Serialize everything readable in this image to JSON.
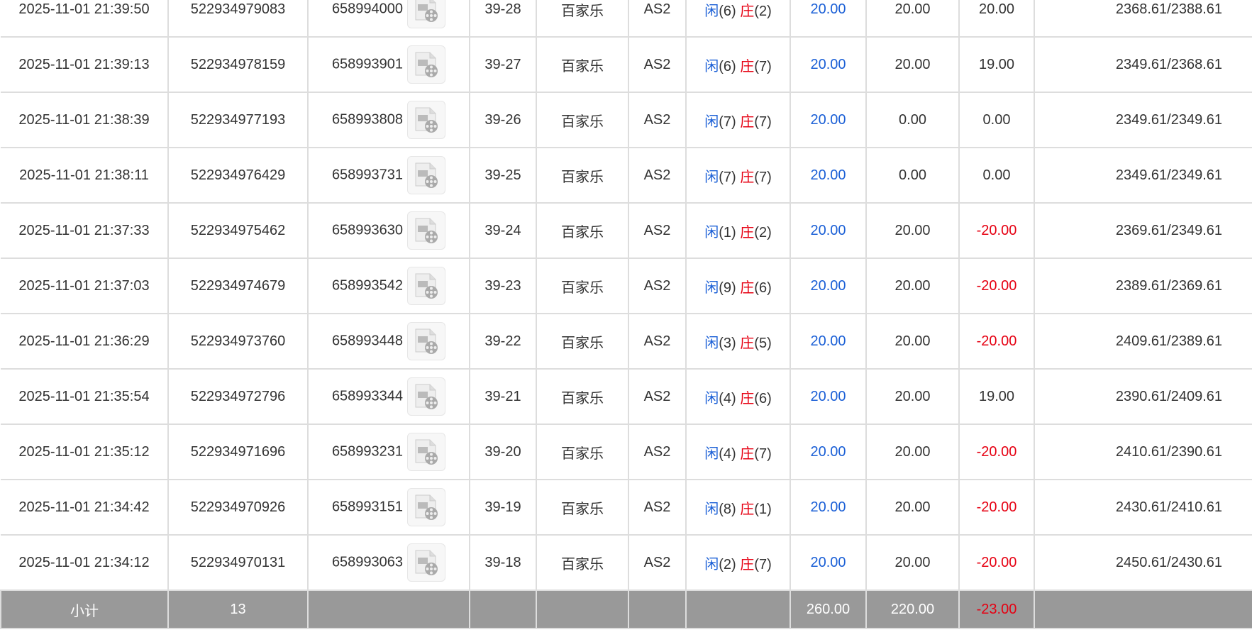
{
  "rows": [
    {
      "time": "2025-11-01 21:39:50",
      "bet_id": "522934979083",
      "round_id": "658994000",
      "shoe": "39-28",
      "game": "百家乐",
      "table": "AS2",
      "player_label": "闲",
      "player": "(6)",
      "banker_label": "庄",
      "banker": "(2)",
      "bet": "20.00",
      "valid": "20.00",
      "win": "20.00",
      "balance": "2368.61/2388.61"
    },
    {
      "time": "2025-11-01 21:39:13",
      "bet_id": "522934978159",
      "round_id": "658993901",
      "shoe": "39-27",
      "game": "百家乐",
      "table": "AS2",
      "player_label": "闲",
      "player": "(6)",
      "banker_label": "庄",
      "banker": "(7)",
      "bet": "20.00",
      "valid": "20.00",
      "win": "19.00",
      "balance": "2349.61/2368.61"
    },
    {
      "time": "2025-11-01 21:38:39",
      "bet_id": "522934977193",
      "round_id": "658993808",
      "shoe": "39-26",
      "game": "百家乐",
      "table": "AS2",
      "player_label": "闲",
      "player": "(7)",
      "banker_label": "庄",
      "banker": "(7)",
      "bet": "20.00",
      "valid": "0.00",
      "win": "0.00",
      "balance": "2349.61/2349.61"
    },
    {
      "time": "2025-11-01 21:38:11",
      "bet_id": "522934976429",
      "round_id": "658993731",
      "shoe": "39-25",
      "game": "百家乐",
      "table": "AS2",
      "player_label": "闲",
      "player": "(7)",
      "banker_label": "庄",
      "banker": "(7)",
      "bet": "20.00",
      "valid": "0.00",
      "win": "0.00",
      "balance": "2349.61/2349.61"
    },
    {
      "time": "2025-11-01 21:37:33",
      "bet_id": "522934975462",
      "round_id": "658993630",
      "shoe": "39-24",
      "game": "百家乐",
      "table": "AS2",
      "player_label": "闲",
      "player": "(1)",
      "banker_label": "庄",
      "banker": "(2)",
      "bet": "20.00",
      "valid": "20.00",
      "win": "-20.00",
      "balance": "2369.61/2349.61"
    },
    {
      "time": "2025-11-01 21:37:03",
      "bet_id": "522934974679",
      "round_id": "658993542",
      "shoe": "39-23",
      "game": "百家乐",
      "table": "AS2",
      "player_label": "闲",
      "player": "(9)",
      "banker_label": "庄",
      "banker": "(6)",
      "bet": "20.00",
      "valid": "20.00",
      "win": "-20.00",
      "balance": "2389.61/2369.61"
    },
    {
      "time": "2025-11-01 21:36:29",
      "bet_id": "522934973760",
      "round_id": "658993448",
      "shoe": "39-22",
      "game": "百家乐",
      "table": "AS2",
      "player_label": "闲",
      "player": "(3)",
      "banker_label": "庄",
      "banker": "(5)",
      "bet": "20.00",
      "valid": "20.00",
      "win": "-20.00",
      "balance": "2409.61/2389.61"
    },
    {
      "time": "2025-11-01 21:35:54",
      "bet_id": "522934972796",
      "round_id": "658993344",
      "shoe": "39-21",
      "game": "百家乐",
      "table": "AS2",
      "player_label": "闲",
      "player": "(4)",
      "banker_label": "庄",
      "banker": "(6)",
      "bet": "20.00",
      "valid": "20.00",
      "win": "19.00",
      "balance": "2390.61/2409.61"
    },
    {
      "time": "2025-11-01 21:35:12",
      "bet_id": "522934971696",
      "round_id": "658993231",
      "shoe": "39-20",
      "game": "百家乐",
      "table": "AS2",
      "player_label": "闲",
      "player": "(4)",
      "banker_label": "庄",
      "banker": "(7)",
      "bet": "20.00",
      "valid": "20.00",
      "win": "-20.00",
      "balance": "2410.61/2390.61"
    },
    {
      "time": "2025-11-01 21:34:42",
      "bet_id": "522934970926",
      "round_id": "658993151",
      "shoe": "39-19",
      "game": "百家乐",
      "table": "AS2",
      "player_label": "闲",
      "player": "(8)",
      "banker_label": "庄",
      "banker": "(1)",
      "bet": "20.00",
      "valid": "20.00",
      "win": "-20.00",
      "balance": "2430.61/2410.61"
    },
    {
      "time": "2025-11-01 21:34:12",
      "bet_id": "522934970131",
      "round_id": "658993063",
      "shoe": "39-18",
      "game": "百家乐",
      "table": "AS2",
      "player_label": "闲",
      "player": "(2)",
      "banker_label": "庄",
      "banker": "(7)",
      "bet": "20.00",
      "valid": "20.00",
      "win": "-20.00",
      "balance": "2450.61/2430.61"
    }
  ],
  "subtotal": {
    "label": "小计",
    "count": "13",
    "bet": "260.00",
    "valid": "220.00",
    "win": "-23.00"
  },
  "colors": {
    "player": "#1a5fd6",
    "banker": "#e60012",
    "negative": "#e60012",
    "subtotal_bg": "#999999"
  },
  "icons": {
    "replay": "video-file-icon"
  }
}
